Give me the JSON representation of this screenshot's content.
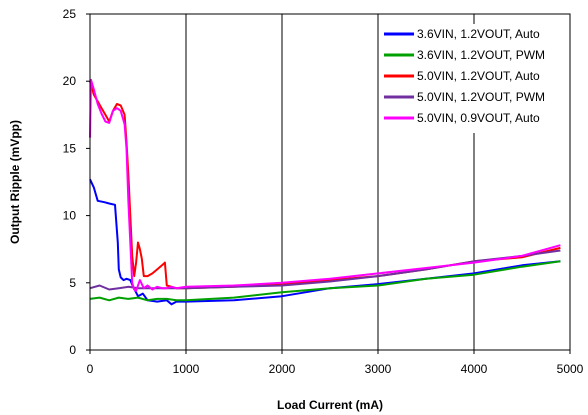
{
  "chart_data": {
    "type": "line",
    "title": "",
    "xlabel": "Load Current (mA)",
    "ylabel": "Output Ripple (mVpp)",
    "xlim": [
      0,
      5000
    ],
    "ylim": [
      0,
      25
    ],
    "x_ticks": [
      0,
      1000,
      2000,
      3000,
      4000,
      5000
    ],
    "y_ticks": [
      0,
      5,
      10,
      15,
      20,
      25
    ],
    "grid": "vertical",
    "legend_position": "top-right",
    "series": [
      {
        "name": "3.6VIN, 1.2VOUT, Auto",
        "color": "#0000ff",
        "x": [
          0,
          40,
          80,
          150,
          200,
          260,
          290,
          300,
          320,
          350,
          380,
          420,
          450,
          500,
          550,
          600,
          700,
          800,
          850,
          900,
          1000,
          1500,
          2000,
          2500,
          3000,
          3500,
          4000,
          4500,
          4900
        ],
        "y": [
          12.7,
          12.1,
          11.1,
          11.0,
          10.9,
          10.8,
          8.0,
          6.0,
          5.4,
          5.2,
          5.3,
          5.2,
          4.7,
          4.0,
          4.2,
          3.7,
          3.6,
          3.7,
          3.4,
          3.6,
          3.6,
          3.7,
          4.0,
          4.6,
          4.9,
          5.3,
          5.7,
          6.3,
          6.6
        ]
      },
      {
        "name": "3.6VIN, 1.2VOUT, PWM",
        "color": "#00a000",
        "x": [
          0,
          100,
          200,
          300,
          400,
          500,
          600,
          700,
          800,
          900,
          1000,
          1500,
          2000,
          2500,
          3000,
          3500,
          4000,
          4500,
          4900
        ],
        "y": [
          3.8,
          3.9,
          3.7,
          3.9,
          3.8,
          3.9,
          3.7,
          3.8,
          3.8,
          3.7,
          3.7,
          3.9,
          4.3,
          4.6,
          4.8,
          5.3,
          5.6,
          6.2,
          6.6
        ]
      },
      {
        "name": "5.0VIN, 1.2VOUT, Auto",
        "color": "#ff0000",
        "x": [
          0,
          40,
          80,
          120,
          160,
          200,
          240,
          280,
          320,
          360,
          380,
          400,
          420,
          440,
          460,
          480,
          500,
          520,
          540,
          560,
          600,
          650,
          700,
          750,
          780,
          800,
          900,
          1000,
          1500,
          2000,
          2500,
          3000,
          3500,
          4000,
          4500,
          4900
        ],
        "y": [
          20.0,
          19.0,
          18.5,
          18.0,
          17.5,
          17.0,
          17.8,
          18.3,
          18.2,
          17.5,
          15.5,
          13.0,
          10.0,
          7.0,
          5.5,
          6.5,
          8.0,
          7.5,
          6.8,
          5.5,
          5.5,
          5.7,
          6.0,
          6.3,
          6.5,
          4.8,
          4.6,
          4.6,
          4.7,
          4.9,
          5.2,
          5.5,
          6.0,
          6.6,
          6.9,
          7.6
        ]
      },
      {
        "name": "5.0VIN, 1.2VOUT, PWM",
        "color": "#7030a0",
        "x": [
          0,
          100,
          200,
          300,
          400,
          500,
          600,
          700,
          800,
          900,
          1000,
          1500,
          2000,
          2500,
          3000,
          3500,
          4000,
          4500,
          4900
        ],
        "y": [
          4.6,
          4.8,
          4.5,
          4.6,
          4.7,
          4.6,
          4.6,
          4.6,
          4.6,
          4.6,
          4.6,
          4.7,
          4.8,
          5.1,
          5.5,
          6.0,
          6.6,
          7.0,
          7.4
        ]
      },
      {
        "name": "5.0VIN, 0.9VOUT, Auto",
        "color": "#ff00ff",
        "x": [
          0,
          10,
          40,
          80,
          120,
          160,
          200,
          240,
          280,
          320,
          360,
          380,
          400,
          420,
          440,
          460,
          480,
          500,
          520,
          560,
          600,
          650,
          700,
          750,
          800,
          850,
          900,
          1000,
          1500,
          2000,
          2500,
          3000,
          3500,
          4000,
          4500,
          4900
        ],
        "y": [
          15.8,
          20.1,
          19.4,
          18.3,
          17.6,
          17.0,
          16.9,
          17.8,
          18.0,
          17.8,
          16.8,
          15.0,
          11.0,
          8.0,
          5.0,
          4.5,
          4.4,
          4.8,
          5.2,
          4.6,
          4.8,
          4.5,
          4.7,
          4.6,
          4.6,
          4.7,
          4.6,
          4.7,
          4.8,
          5.0,
          5.3,
          5.7,
          6.1,
          6.5,
          7.0,
          7.8
        ]
      }
    ]
  }
}
